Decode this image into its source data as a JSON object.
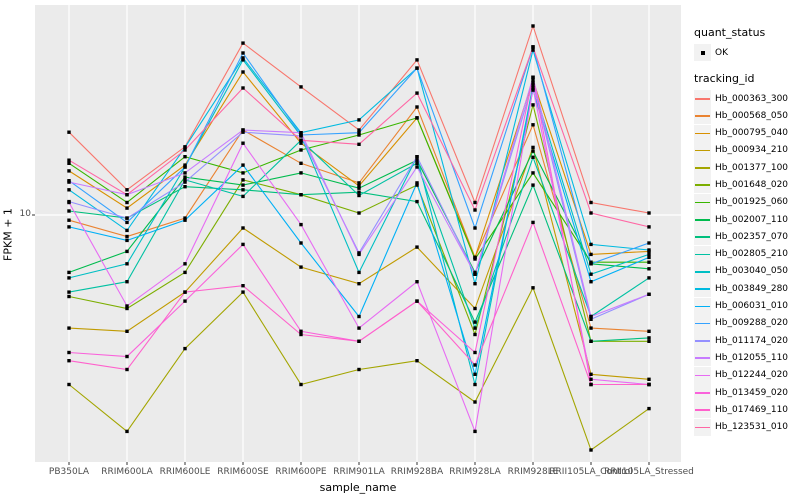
{
  "chart_data": {
    "type": "line",
    "title": "",
    "xlabel": "sample_name",
    "ylabel": "FPKM + 1",
    "y_scale": "log10",
    "y_ticks": [
      "10"
    ],
    "grid": "major",
    "panel_bg": "#EBEBEB",
    "gridline_color": "#FFFFFF",
    "point_marker": {
      "shape": "square",
      "color": "#000000",
      "size": 3.4
    },
    "legend": {
      "position": "right",
      "quant_status_title": "quant_status",
      "quant_status_items": [
        "OK"
      ],
      "tracking_id_title": "tracking_id"
    },
    "categories": [
      "PB350LA",
      "RRIM600LA",
      "RRIM600LE",
      "RRIM600SE",
      "RRIM600PE",
      "RRIM901LA",
      "RRIM928BA",
      "RRIM928LA",
      "RRIM928LE",
      "RRII105LA_Control",
      "RRII105LA_Stressed"
    ],
    "series": [
      {
        "name": "Hb_000363_300",
        "color": "#F8766D",
        "values": [
          22.5,
          12.8,
          19.5,
          53.9,
          35.1,
          23.0,
          45.7,
          11.3,
          63.7,
          11.3,
          10.2
        ]
      },
      {
        "name": "Hb_000568_050",
        "color": "#EA8331",
        "values": [
          9.5,
          8.1,
          9.7,
          23.0,
          16.6,
          13.7,
          28.8,
          6.6,
          24.2,
          3.3,
          3.2
        ]
      },
      {
        "name": "Hb_000795_040",
        "color": "#D89000",
        "values": [
          15.4,
          10.7,
          16.3,
          40.6,
          20.2,
          13.3,
          25.9,
          6.6,
          37.5,
          6.8,
          7.0
        ]
      },
      {
        "name": "Hb_000934_210",
        "color": "#C09B00",
        "values": [
          3.3,
          3.2,
          4.7,
          8.8,
          6.0,
          5.1,
          7.3,
          4.0,
          19.4,
          2.1,
          2.0
        ]
      },
      {
        "name": "Hb_001377_100",
        "color": "#A3A500",
        "values": [
          1.9,
          1.2,
          2.7,
          4.7,
          1.9,
          2.2,
          2.4,
          1.6,
          4.9,
          1.0,
          1.5
        ]
      },
      {
        "name": "Hb_001648_020",
        "color": "#7CAE00",
        "values": [
          4.5,
          4.0,
          5.7,
          14.1,
          12.2,
          10.2,
          13.4,
          3.1,
          29.4,
          2.9,
          2.9
        ]
      },
      {
        "name": "Hb_001925_060",
        "color": "#39B600",
        "values": [
          16.6,
          11.3,
          17.7,
          15.1,
          18.9,
          21.9,
          25.9,
          6.5,
          15.1,
          6.3,
          6.3
        ]
      },
      {
        "name": "Hb_002007_110",
        "color": "#00BB4E",
        "values": [
          5.7,
          7.0,
          14.5,
          13.4,
          15.1,
          13.0,
          17.1,
          5.7,
          18.7,
          6.2,
          5.9
        ]
      },
      {
        "name": "Hb_002357_070",
        "color": "#00BF7D",
        "values": [
          10.4,
          9.7,
          13.2,
          12.8,
          12.2,
          12.5,
          11.4,
          3.5,
          13.4,
          2.9,
          3.0
        ]
      },
      {
        "name": "Hb_002805_210",
        "color": "#00C1A3",
        "values": [
          4.7,
          5.2,
          14.1,
          12.0,
          20.8,
          12.1,
          16.6,
          3.3,
          17.6,
          3.7,
          5.4
        ]
      },
      {
        "name": "Hb_003040_050",
        "color": "#00BFC4",
        "values": [
          5.4,
          6.2,
          16.0,
          45.7,
          21.7,
          5.7,
          17.7,
          1.9,
          35.7,
          5.6,
          6.8
        ]
      },
      {
        "name": "Hb_003849_280",
        "color": "#00BAE0",
        "values": [
          12.8,
          8.6,
          19.4,
          46.6,
          22.4,
          25.4,
          42.2,
          5.1,
          50.3,
          7.5,
          7.1
        ]
      },
      {
        "name": "Hb_006031_010",
        "color": "#00B0F6",
        "values": [
          8.9,
          7.8,
          9.5,
          16.3,
          7.6,
          3.7,
          13.7,
          2.1,
          34.0,
          5.2,
          6.6
        ]
      },
      {
        "name": "Hb_009288_020",
        "color": "#35A2FF",
        "values": [
          14.0,
          9.3,
          16.0,
          48.9,
          21.9,
          22.4,
          42.2,
          8.8,
          51.9,
          6.2,
          7.6
        ]
      },
      {
        "name": "Hb_011174_020",
        "color": "#9590FF",
        "values": [
          11.4,
          9.7,
          13.8,
          22.5,
          21.7,
          6.9,
          17.7,
          5.6,
          36.5,
          3.6,
          4.6
        ]
      },
      {
        "name": "Hb_012055_110",
        "color": "#C77CFF",
        "values": [
          13.8,
          12.2,
          15.1,
          23.0,
          22.4,
          6.8,
          16.0,
          5.6,
          38.6,
          3.7,
          4.6
        ]
      },
      {
        "name": "Hb_012244_020",
        "color": "#E76BF3",
        "values": [
          11.3,
          4.1,
          6.2,
          20.2,
          9.1,
          3.3,
          5.2,
          1.2,
          34.7,
          2.0,
          1.9
        ]
      },
      {
        "name": "Hb_013459_020",
        "color": "#FA62DB",
        "values": [
          2.6,
          2.5,
          4.3,
          7.5,
          3.2,
          2.9,
          4.3,
          2.6,
          38.6,
          1.9,
          1.9
        ]
      },
      {
        "name": "Hb_017469_110",
        "color": "#FF61CC",
        "values": [
          2.4,
          2.2,
          4.7,
          5.0,
          3.1,
          2.9,
          4.3,
          2.3,
          9.3,
          1.9,
          1.9
        ]
      },
      {
        "name": "Hb_123531_010",
        "color": "#FF67A4",
        "values": [
          17.1,
          12.2,
          18.9,
          34.7,
          20.8,
          20.0,
          33.0,
          10.5,
          51.9,
          10.2,
          8.9
        ]
      }
    ]
  }
}
